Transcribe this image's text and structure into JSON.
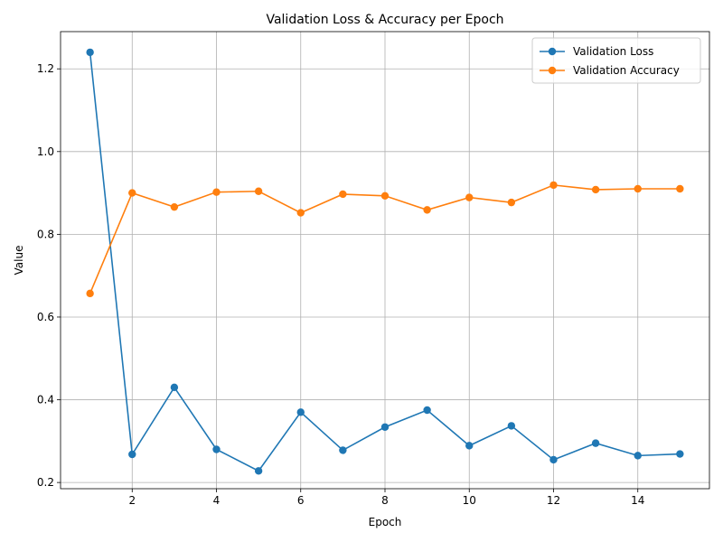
{
  "chart_data": {
    "type": "line",
    "title": "Validation Loss & Accuracy per Epoch",
    "xlabel": "Epoch",
    "ylabel": "Value",
    "x": [
      1,
      2,
      3,
      4,
      5,
      6,
      7,
      8,
      9,
      10,
      11,
      12,
      13,
      14,
      15
    ],
    "xlim": [
      0.3,
      15.7
    ],
    "ylim": [
      0.185,
      1.29
    ],
    "xticks": [
      2,
      4,
      6,
      8,
      10,
      12,
      14
    ],
    "yticks": [
      0.2,
      0.4,
      0.6,
      0.8,
      1.0,
      1.2
    ],
    "grid": true,
    "legend_position": "top-right",
    "series": [
      {
        "name": "Validation Loss",
        "color": "#1f77b4",
        "values": [
          1.24,
          0.268,
          0.43,
          0.28,
          0.228,
          0.37,
          0.278,
          0.334,
          0.375,
          0.289,
          0.337,
          0.255,
          0.295,
          0.265,
          0.269
        ]
      },
      {
        "name": "Validation Accuracy",
        "color": "#ff7f0e",
        "values": [
          0.657,
          0.9,
          0.866,
          0.902,
          0.904,
          0.852,
          0.897,
          0.893,
          0.859,
          0.889,
          0.877,
          0.919,
          0.908,
          0.91,
          0.91
        ]
      }
    ]
  }
}
